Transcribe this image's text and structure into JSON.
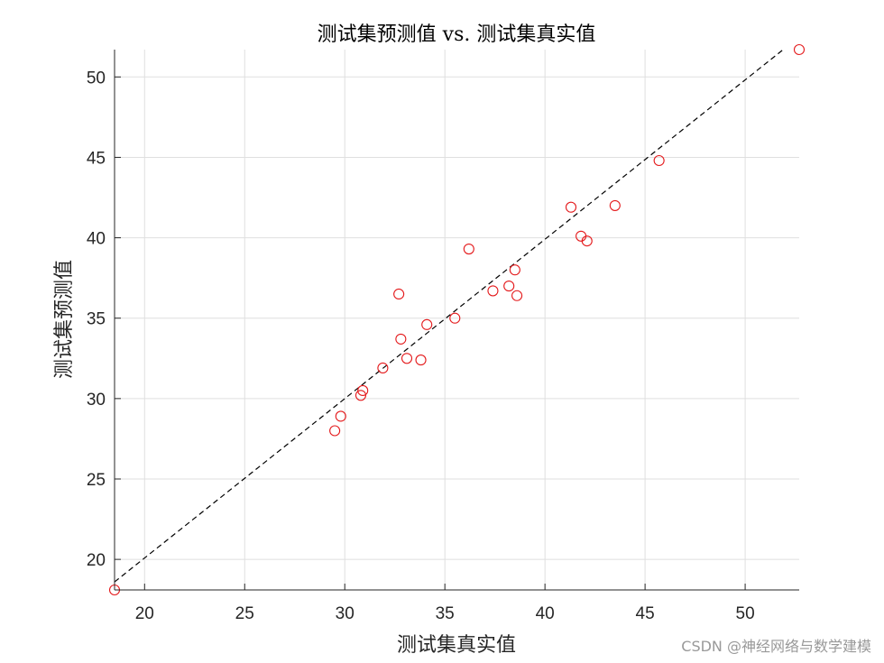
{
  "watermark": "CSDN @神经网络与数学建模",
  "chart_data": {
    "type": "scatter",
    "title": "测试集预测值 vs. 测试集真实值",
    "xlabel": "测试集真实值",
    "ylabel": "测试集预测值",
    "xlim": [
      18.5,
      52.7
    ],
    "ylim": [
      18.1,
      51.7
    ],
    "xticks": [
      20,
      25,
      30,
      35,
      40,
      45,
      50
    ],
    "yticks": [
      20,
      25,
      30,
      35,
      40,
      45,
      50
    ],
    "grid": true,
    "marker_color": "#e41a1c",
    "line_color": "#000000",
    "reference_line": {
      "style": "dashed",
      "x": [
        18.5,
        51.9
      ],
      "y": [
        18.6,
        51.7
      ]
    },
    "series": [
      {
        "marker": "open-circle",
        "x": [
          18.5,
          29.5,
          29.8,
          30.8,
          30.9,
          31.9,
          32.7,
          32.8,
          33.1,
          33.8,
          34.1,
          35.5,
          36.2,
          37.4,
          38.2,
          38.5,
          38.6,
          41.3,
          41.8,
          42.1,
          43.5,
          45.7,
          52.7
        ],
        "y": [
          18.1,
          28.0,
          28.9,
          30.2,
          30.5,
          31.9,
          36.5,
          33.7,
          32.5,
          32.4,
          34.6,
          35.0,
          39.3,
          36.7,
          37.0,
          38.0,
          36.4,
          41.9,
          40.1,
          39.8,
          42.0,
          44.8,
          51.7
        ]
      }
    ]
  }
}
